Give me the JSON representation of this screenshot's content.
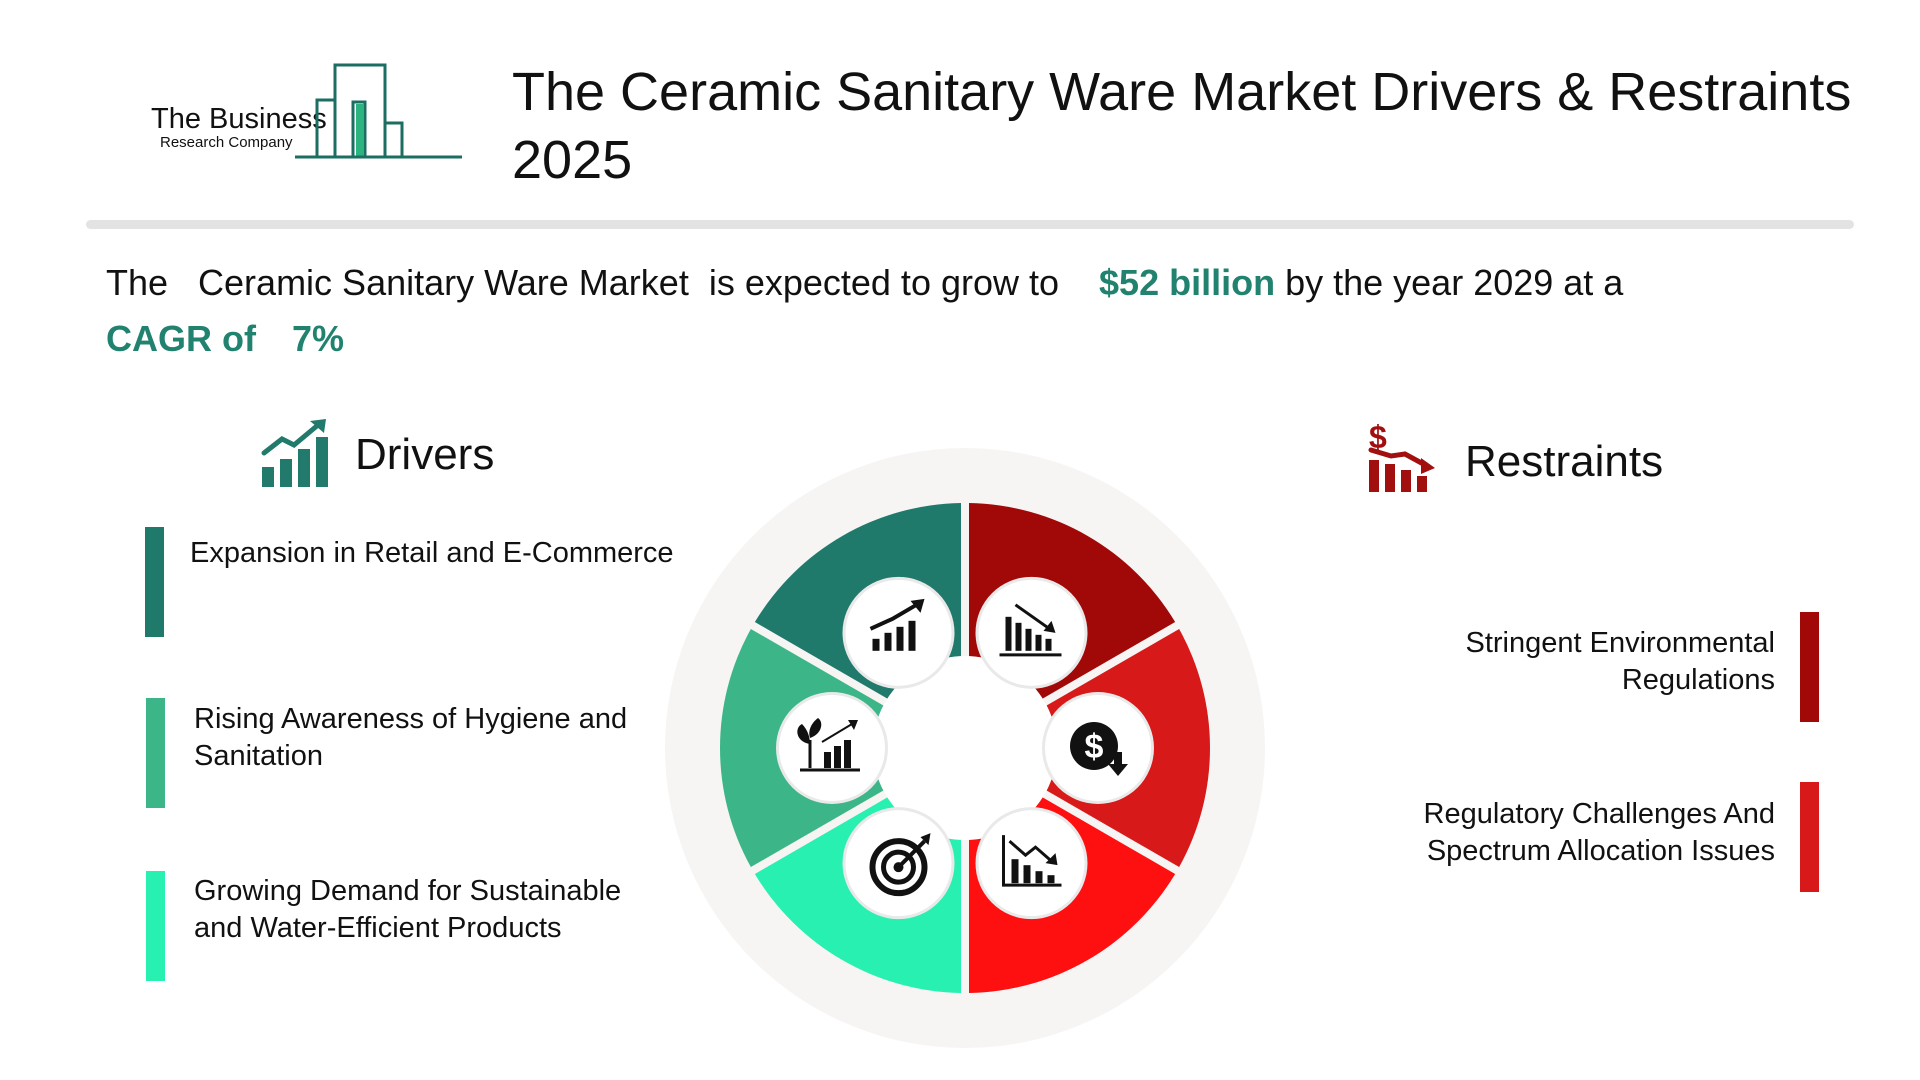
{
  "logo": {
    "line1": "The Business",
    "line2": "Research Company"
  },
  "title": "The Ceramic Sanitary Ware Market Drivers & Restraints 2025",
  "summary": {
    "pre": "The   Ceramic Sanitary Ware Market  is expected to grow to",
    "value": "$52 billion",
    "mid": "by the year 2029 at a",
    "cagr_label": "CAGR of",
    "cagr_value": "7%"
  },
  "drivers": {
    "heading": "Drivers",
    "icon": "growth-chart-icon",
    "items": [
      {
        "text": "Expansion in Retail and E-Commerce",
        "color": "#207a6b"
      },
      {
        "text": "Rising Awareness of Hygiene and Sanitation",
        "color": "#3cb689"
      },
      {
        "text": "Growing Demand for Sustainable and Water-Efficient Products",
        "color": "#27f0b0"
      }
    ]
  },
  "restraints": {
    "heading": "Restraints",
    "icon": "declining-dollar-chart-icon",
    "items": [
      {
        "text": "Stringent Environmental Regulations",
        "color": "#a10808"
      },
      {
        "text": "Regulatory Challenges And Spectrum Allocation Issues",
        "color": "#d81919"
      }
    ]
  },
  "wheel": {
    "segment_colors": [
      "#207a6b",
      "#3cb689",
      "#27f0b0",
      "#a10808",
      "#d81919",
      "#fe1010"
    ],
    "icons": [
      "rising-bar-chart-icon",
      "plant-growth-chart-icon",
      "target-icon",
      "falling-bar-chart-icon",
      "dollar-down-icon",
      "declining-line-chart-icon"
    ]
  },
  "colors": {
    "accent": "#21836f",
    "driver_icon": "#217a6b",
    "restraint_icon": "#a10f0f"
  }
}
